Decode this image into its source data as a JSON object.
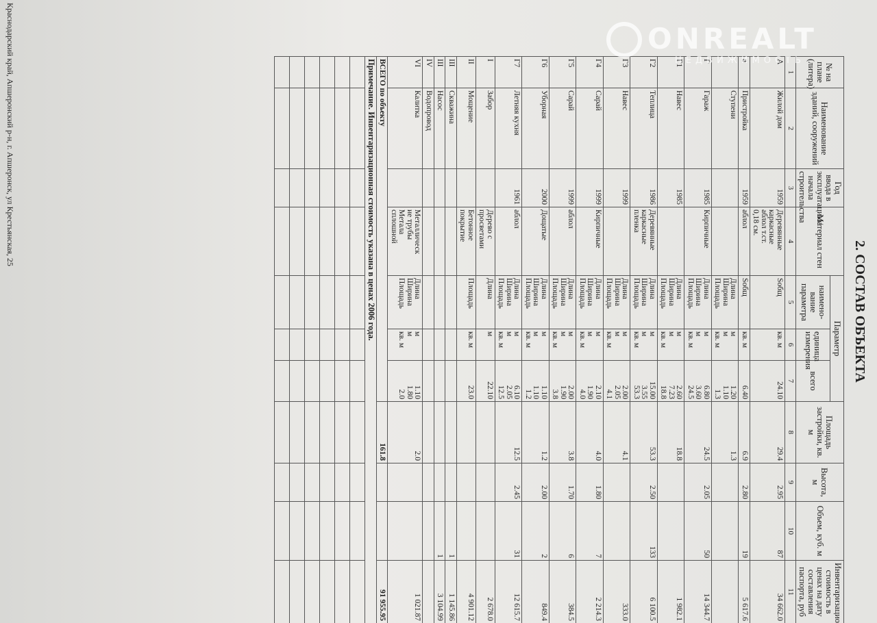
{
  "header": {
    "title": "2. СОСТАВ ОБЪЕКТА",
    "watermark": "ONREALT",
    "watermark_sub": "НЕДВИЖИМОСТЬ"
  },
  "table": {
    "columns": [
      "№ на плане (литера)",
      "Наименование зданий, сооружений",
      "Год ввода в эксплуатацию/ начала строительства",
      "Материал стен",
      "наимено-вание параметра",
      "единица измерения",
      "всего",
      "Площадь застройки, кв. м",
      "Высота, м",
      "Объем, куб. м",
      "Инвентаризационная стоимость в ценах на дату составления паспорта, руб"
    ],
    "group_header": "Параметр",
    "numbers": [
      "1",
      "2",
      "3",
      "4",
      "5",
      "6",
      "7",
      "8",
      "9",
      "10",
      "11"
    ],
    "rows": [
      [
        [
          "А"
        ],
        [
          "Жилой дом"
        ],
        [
          "1959"
        ],
        [
          "Деревянные",
          "каркасные",
          "аблол т.ст.",
          "0,18 см."
        ],
        [
          "Sобщ"
        ],
        [
          "кв. м"
        ],
        [
          "24.10"
        ],
        [
          "29.4"
        ],
        [
          "2.95"
        ],
        [
          "87"
        ],
        [
          "34 662.0"
        ]
      ],
      [
        [
          "а"
        ],
        [
          "Пристройка"
        ],
        [
          "1959"
        ],
        [
          "аблол"
        ],
        [
          "Sобщ"
        ],
        [
          "кв. м"
        ],
        [
          "6.40"
        ],
        [
          "6.9"
        ],
        [
          "2.80"
        ],
        [
          "19"
        ],
        [
          "5 617.6"
        ]
      ],
      [
        [],
        [
          "Ступени"
        ],
        [],
        [],
        [
          "Длина",
          "Ширина",
          "Площадь"
        ],
        [
          "м",
          "м",
          "кв. м"
        ],
        [
          "1.20",
          "1.10",
          "1.3"
        ],
        [
          "1.3"
        ],
        [],
        [],
        []
      ],
      [
        [
          "Г"
        ],
        [
          "Гараж"
        ],
        [
          "1985"
        ],
        [
          "Кирпичные"
        ],
        [
          "Длина",
          "Ширина",
          "Площадь"
        ],
        [
          "м",
          "м",
          "кв. м"
        ],
        [
          "6.80",
          "3.60",
          "24.5"
        ],
        [
          "24.5"
        ],
        [
          "2.05"
        ],
        [
          "50"
        ],
        [
          "14 344.7"
        ]
      ],
      [
        [
          "Г1"
        ],
        [
          "Навес"
        ],
        [
          "1985"
        ],
        [],
        [
          "Длина",
          "Ширина",
          "Площадь"
        ],
        [
          "м",
          "м",
          "кв. м"
        ],
        [
          "2.60",
          "7.23",
          "18.8"
        ],
        [
          "18.8"
        ],
        [],
        [],
        [
          "1 982.1"
        ]
      ],
      [
        [
          "Г2"
        ],
        [
          "Теплица"
        ],
        [
          "1986"
        ],
        [
          "Деревянные",
          "каркасные",
          "пленка"
        ],
        [
          "Длина",
          "Ширина",
          "Площадь"
        ],
        [
          "м",
          "м",
          "кв. м"
        ],
        [
          "15.00",
          "3.55",
          "53.3"
        ],
        [
          "53.3"
        ],
        [
          "2.50"
        ],
        [
          "133"
        ],
        [
          "6 100.5"
        ]
      ],
      [
        [
          "Г3"
        ],
        [
          "Навес"
        ],
        [
          "1999"
        ],
        [],
        [
          "Длина",
          "Ширина",
          "Площадь"
        ],
        [
          "м",
          "м",
          "кв. м"
        ],
        [
          "2.00",
          "2.05",
          "4.1"
        ],
        [
          "4.1"
        ],
        [],
        [],
        [
          "333.0"
        ]
      ],
      [
        [
          "Г4"
        ],
        [
          "Сарай"
        ],
        [
          "1999"
        ],
        [
          "Кирпичные"
        ],
        [
          "Длина",
          "Ширина",
          "Площадь"
        ],
        [
          "м",
          "м",
          "кв. м"
        ],
        [
          "2.10",
          "1.90",
          "4.0"
        ],
        [
          "4.0"
        ],
        [
          "1.80"
        ],
        [
          "7"
        ],
        [
          "2 214.3"
        ]
      ],
      [
        [
          "Г5"
        ],
        [
          "Сарай"
        ],
        [
          "1999"
        ],
        [
          "аблол"
        ],
        [
          "Длина",
          "Ширина",
          "Площадь"
        ],
        [
          "м",
          "м",
          "кв. м"
        ],
        [
          "2.00",
          "1.90",
          "3.8"
        ],
        [
          "3.8"
        ],
        [
          "1.70"
        ],
        [
          "6"
        ],
        [
          "384.5"
        ]
      ],
      [
        [
          "Г6"
        ],
        [
          "Уборная"
        ],
        [
          "2000"
        ],
        [
          "Дощатые"
        ],
        [
          "Длина",
          "Ширина",
          "Площадь"
        ],
        [
          "м",
          "м",
          "кв. м"
        ],
        [
          "1.10",
          "1.10",
          "1.2"
        ],
        [
          "1.2"
        ],
        [
          "2.00"
        ],
        [
          "2"
        ],
        [
          "849.4"
        ]
      ],
      [
        [
          "Г7"
        ],
        [
          "Летняя кухня"
        ],
        [
          "1961"
        ],
        [
          "аблол"
        ],
        [
          "Длина",
          "Ширина",
          "Площадь"
        ],
        [
          "м",
          "м",
          "кв. м"
        ],
        [
          "6.10",
          "2.05",
          "12.5"
        ],
        [
          "12.5"
        ],
        [
          "2.45"
        ],
        [
          "31"
        ],
        [
          "12 615.7"
        ]
      ],
      [
        [
          "I"
        ],
        [
          "Забор"
        ],
        [],
        [
          "Дерево с",
          "просветами"
        ],
        [
          "Длина"
        ],
        [
          "м"
        ],
        [
          "22.10"
        ],
        [],
        [],
        [],
        [
          "2 678.0"
        ]
      ],
      [
        [
          "II"
        ],
        [
          "Мощение"
        ],
        [],
        [
          "Бетонное",
          "покрытие"
        ],
        [
          "Площадь"
        ],
        [
          "кв. м"
        ],
        [
          "23.0"
        ],
        [],
        [],
        [],
        [
          "4 901.12"
        ]
      ],
      [
        [
          "III"
        ],
        [
          "Скважина"
        ],
        [],
        [],
        [],
        [],
        [],
        [],
        [],
        [
          "1"
        ],
        [
          "1 145.86"
        ]
      ],
      [
        [
          "III"
        ],
        [
          "Насос"
        ],
        [],
        [],
        [],
        [],
        [],
        [],
        [],
        [
          "1"
        ],
        [
          "3 104.99"
        ]
      ],
      [
        [
          "IV"
        ],
        [
          "Водопровод"
        ],
        [],
        [],
        [],
        [],
        [],
        [],
        [],
        [],
        []
      ],
      [
        [
          "VI"
        ],
        [
          "Калитка"
        ],
        [],
        [
          "Металлическ",
          "ие трубы",
          "Метала",
          "сплошной"
        ],
        [
          "Длина",
          "Ширина",
          "Площадь"
        ],
        [
          "м",
          "м",
          "кв. м"
        ],
        [
          "1.10",
          "1.80",
          "2.0"
        ],
        [
          "2.0"
        ],
        [],
        [],
        [
          "1 021.87"
        ]
      ]
    ],
    "total": {
      "label": "ВСЕГО по объекту",
      "area": "161.8",
      "cost": "91 955.95"
    },
    "note": "Примечание. Инвентаризационная стоимость указана в ценах 2006 года."
  },
  "footer": "Краснодарский край, Апшеронский р-н, г. Апшеронск, ул Крестьянская, 25"
}
